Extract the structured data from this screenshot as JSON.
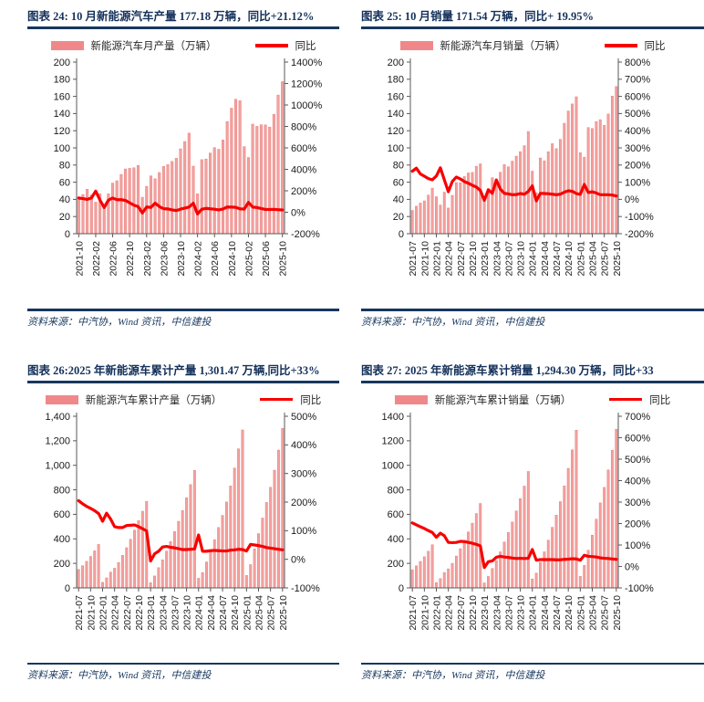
{
  "page": {
    "accent_rule_color": "#17375E",
    "title_color": "#15315B",
    "bar_color": "#F3A19F",
    "bar_edge_color": "#E9827F",
    "line_color": "#F80000"
  },
  "chart_data": [
    {
      "id": "figure-24",
      "type": "bar+line",
      "title": "图表 24: 10 月新能源汽车产量 177.18 万辆，同比+21.12%",
      "source": "资料来源：中汽协，Wind 资讯，中信建投",
      "legend": [
        {
          "name": "新能源汽车月产量（万辆）",
          "type": "bar"
        },
        {
          "name": "同比",
          "type": "line"
        }
      ],
      "left_axis": {
        "min": 0,
        "max": 200,
        "ticks": [
          "0",
          "20",
          "40",
          "60",
          "80",
          "100",
          "120",
          "140",
          "160",
          "180",
          "200"
        ]
      },
      "right_axis": {
        "min": -200,
        "max": 1400,
        "ticks": [
          "-200%",
          "0%",
          "200%",
          "400%",
          "600%",
          "800%",
          "1000%",
          "1200%",
          "1400%"
        ]
      },
      "x_tick_every": 4,
      "categories": [
        "2021-10",
        "2021-11",
        "2021-12",
        "2022-01",
        "2022-02",
        "2022-03",
        "2022-04",
        "2022-05",
        "2022-06",
        "2022-07",
        "2022-08",
        "2022-09",
        "2022-10",
        "2022-11",
        "2022-12",
        "2023-01",
        "2023-02",
        "2023-03",
        "2023-04",
        "2023-05",
        "2023-06",
        "2023-07",
        "2023-08",
        "2023-09",
        "2023-10",
        "2023-11",
        "2023-12",
        "2024-01",
        "2024-02",
        "2024-03",
        "2024-04",
        "2024-05",
        "2024-06",
        "2024-07",
        "2024-08",
        "2024-09",
        "2024-10",
        "2024-11",
        "2024-12",
        "2025-01",
        "2025-02",
        "2025-03",
        "2025-04",
        "2025-05",
        "2025-06",
        "2025-07",
        "2025-08",
        "2025-09",
        "2025-10"
      ],
      "series": [
        {
          "name": "新能源汽车月产量（万辆）",
          "axis": "left",
          "values": [
            39.7,
            45.7,
            51.8,
            45.2,
            36.8,
            46.5,
            31.2,
            46.6,
            59.0,
            61.7,
            69.1,
            75.5,
            76.2,
            76.8,
            79.5,
            42.5,
            55.2,
            67.4,
            64.0,
            71.3,
            78.4,
            80.5,
            84.3,
            87.9,
            98.9,
            107.4,
            117.2,
            78.7,
            46.4,
            86.3,
            87.0,
            94.0,
            100.3,
            98.4,
            109.2,
            130.7,
            146.3,
            156.6,
            154.9,
            101.5,
            88.8,
            127.7,
            125.1,
            127.0,
            126.8,
            124.3,
            139.1,
            161.6,
            177.18
          ]
        },
        {
          "name": "同比",
          "axis": "right",
          "values": [
            133,
            127,
            120,
            133,
            197,
            114,
            44,
            113,
            132,
            117,
            117,
            110,
            88,
            66,
            53,
            -7,
            49,
            45,
            85,
            53,
            33,
            31,
            22,
            16,
            29,
            39,
            48,
            85,
            -16,
            28,
            36,
            32,
            28,
            22,
            30,
            49,
            48,
            46,
            32,
            29,
            92,
            48,
            44,
            35,
            26,
            26,
            27,
            24,
            21.12
          ]
        }
      ]
    },
    {
      "id": "figure-25",
      "type": "bar+line",
      "title": "图表 25: 10 月销量 171.54 万辆，同比+ 19.95%",
      "source": "资料来源：中汽协，Wind 资讯，中信建投",
      "legend": [
        {
          "name": "新能源汽车月销量（万辆）",
          "type": "bar"
        },
        {
          "name": "同比",
          "type": "line"
        }
      ],
      "left_axis": {
        "min": 0,
        "max": 200,
        "ticks": [
          "0",
          "20",
          "40",
          "60",
          "80",
          "100",
          "120",
          "140",
          "160",
          "180",
          "200"
        ]
      },
      "right_axis": {
        "min": -200,
        "max": 800,
        "ticks": [
          "-200%",
          "-100%",
          "0%",
          "100%",
          "200%",
          "300%",
          "400%",
          "500%",
          "600%",
          "700%",
          "800%"
        ]
      },
      "x_tick_every": 3,
      "categories": [
        "2021-07",
        "2021-08",
        "2021-09",
        "2021-10",
        "2021-11",
        "2021-12",
        "2022-01",
        "2022-02",
        "2022-03",
        "2022-04",
        "2022-05",
        "2022-06",
        "2022-07",
        "2022-08",
        "2022-09",
        "2022-10",
        "2022-11",
        "2022-12",
        "2023-01",
        "2023-02",
        "2023-03",
        "2023-04",
        "2023-05",
        "2023-06",
        "2023-07",
        "2023-08",
        "2023-09",
        "2023-10",
        "2023-11",
        "2023-12",
        "2024-01",
        "2024-02",
        "2024-03",
        "2024-04",
        "2024-05",
        "2024-06",
        "2024-07",
        "2024-08",
        "2024-09",
        "2024-10",
        "2024-11",
        "2024-12",
        "2025-01",
        "2025-02",
        "2025-03",
        "2025-04",
        "2025-05",
        "2025-06",
        "2025-07",
        "2025-08",
        "2025-09",
        "2025-10"
      ],
      "series": [
        {
          "name": "新能源汽车月销量（万辆）",
          "axis": "left",
          "values": [
            27.1,
            32.1,
            35.7,
            38.3,
            45.0,
            53.1,
            43.1,
            33.4,
            48.4,
            29.9,
            44.7,
            59.6,
            59.3,
            66.6,
            70.8,
            71.4,
            78.6,
            81.4,
            40.8,
            52.5,
            65.3,
            63.6,
            71.7,
            80.6,
            78.0,
            84.6,
            90.4,
            95.6,
            102.6,
            119.1,
            72.9,
            47.7,
            88.3,
            85.0,
            95.5,
            104.9,
            99.1,
            110.0,
            128.7,
            143.0,
            151.2,
            159.6,
            94.4,
            89.2,
            123.7,
            122.6,
            130.7,
            132.9,
            126.2,
            139.5,
            160.4,
            171.54
          ]
        },
        {
          "name": "同比",
          "axis": "right",
          "values": [
            164,
            182,
            148,
            135,
            121,
            114,
            136,
            184,
            114,
            45,
            105,
            130,
            119,
            104,
            94,
            82,
            72,
            52,
            -6,
            56,
            35,
            113,
            60,
            35,
            32,
            27,
            28,
            34,
            30,
            46,
            79,
            -9,
            35,
            34,
            33,
            30,
            27,
            30,
            42,
            50,
            47,
            34,
            29,
            87,
            40,
            44,
            37,
            27,
            27,
            27,
            25,
            19.95
          ]
        }
      ]
    },
    {
      "id": "figure-26",
      "type": "bar+line",
      "title": "图表 26:2025 年新能源车累计产量 1,301.47 万辆,同比+33%",
      "source": "资料来源：中汽协，Wind 资讯，中信建投",
      "legend": [
        {
          "name": "新能源汽车累计产量（万辆）",
          "type": "bar"
        },
        {
          "name": "同比",
          "type": "line"
        }
      ],
      "left_axis": {
        "min": 0,
        "max": 1400,
        "ticks": [
          "0",
          "200",
          "400",
          "600",
          "800",
          "1,000",
          "1,200",
          "1,400"
        ]
      },
      "right_axis": {
        "min": -100,
        "max": 500,
        "ticks": [
          "-100%",
          "0%",
          "100%",
          "200%",
          "300%",
          "400%",
          "500%"
        ]
      },
      "x_tick_every": 3,
      "categories": [
        "2021-07",
        "2021-08",
        "2021-09",
        "2021-10",
        "2021-11",
        "2021-12",
        "2022-01",
        "2022-02",
        "2022-03",
        "2022-04",
        "2022-05",
        "2022-06",
        "2022-07",
        "2022-08",
        "2022-09",
        "2022-10",
        "2022-11",
        "2022-12",
        "2023-01",
        "2023-02",
        "2023-03",
        "2023-04",
        "2023-05",
        "2023-06",
        "2023-07",
        "2023-08",
        "2023-09",
        "2023-10",
        "2023-11",
        "2023-12",
        "2024-01",
        "2024-02",
        "2024-03",
        "2024-04",
        "2024-05",
        "2024-06",
        "2024-07",
        "2024-08",
        "2024-09",
        "2024-10",
        "2024-11",
        "2024-12",
        "2025-01",
        "2025-02",
        "2025-03",
        "2025-04",
        "2025-05",
        "2025-06",
        "2025-07",
        "2025-08",
        "2025-09",
        "2025-10"
      ],
      "series": [
        {
          "name": "新能源汽车累计产量（万辆）",
          "axis": "left",
          "values": [
            150.3,
            181.3,
            216.6,
            256.6,
            302.3,
            354.5,
            45.2,
            82.0,
            129.3,
            160.5,
            207.1,
            266.1,
            327.9,
            397.0,
            471.7,
            548.5,
            625.3,
            705.8,
            42.5,
            97.7,
            165.0,
            229.1,
            300.5,
            378.8,
            459.1,
            543.4,
            631.3,
            735.2,
            842.6,
            958.7,
            78.7,
            125.2,
            211.5,
            298.5,
            392.6,
            492.9,
            591.4,
            700.8,
            831.6,
            977.9,
            1134.5,
            1288.8,
            101.5,
            190.3,
            318.1,
            442.9,
            569.9,
            696.8,
            821.1,
            960.2,
            1124.3,
            1301.47
          ]
        },
        {
          "name": "同比",
          "axis": "right",
          "values": [
            205,
            194,
            185,
            178,
            170,
            160,
            133,
            161,
            141,
            114,
            111,
            111,
            118,
            119,
            120,
            114,
            107,
            99,
            -6,
            19,
            28,
            43,
            45,
            42,
            40,
            37,
            34,
            34,
            35,
            36,
            85,
            28,
            28,
            30,
            31,
            30,
            29,
            29,
            32,
            33,
            35,
            34,
            29,
            52,
            50,
            48,
            45,
            41,
            39,
            37,
            35,
            33
          ]
        }
      ]
    },
    {
      "id": "figure-27",
      "type": "bar+line",
      "title": "图表 27: 2025 年新能源车累计销量 1,294.30 万辆，同比+33",
      "source": "资料来源：中汽协，Wind 资讯，中信建投",
      "legend": [
        {
          "name": "新能源汽车累计销量（万辆）",
          "type": "bar"
        },
        {
          "name": "同比",
          "type": "line"
        }
      ],
      "left_axis": {
        "min": 0,
        "max": 1400,
        "ticks": [
          "0",
          "200",
          "400",
          "600",
          "800",
          "1000",
          "1200",
          "1400"
        ]
      },
      "right_axis": {
        "min": -100,
        "max": 700,
        "ticks": [
          "-100%",
          "0%",
          "100%",
          "200%",
          "300%",
          "400%",
          "500%",
          "600%",
          "700%"
        ]
      },
      "x_tick_every": 3,
      "categories": [
        "2021-07",
        "2021-08",
        "2021-09",
        "2021-10",
        "2021-11",
        "2021-12",
        "2022-01",
        "2022-02",
        "2022-03",
        "2022-04",
        "2022-05",
        "2022-06",
        "2022-07",
        "2022-08",
        "2022-09",
        "2022-10",
        "2022-11",
        "2022-12",
        "2023-01",
        "2023-02",
        "2023-03",
        "2023-04",
        "2023-05",
        "2023-06",
        "2023-07",
        "2023-08",
        "2023-09",
        "2023-10",
        "2023-11",
        "2023-12",
        "2024-01",
        "2024-02",
        "2024-03",
        "2024-04",
        "2024-05",
        "2024-06",
        "2024-07",
        "2024-08",
        "2024-09",
        "2024-10",
        "2024-11",
        "2024-12",
        "2025-01",
        "2025-02",
        "2025-03",
        "2025-04",
        "2025-05",
        "2025-06",
        "2025-07",
        "2025-08",
        "2025-09",
        "2025-10"
      ],
      "series": [
        {
          "name": "新能源汽车累计销量（万辆）",
          "axis": "left",
          "values": [
            147.8,
            179.9,
            215.7,
            254.2,
            299.0,
            352.1,
            43.1,
            76.5,
            125.7,
            155.6,
            200.3,
            260.0,
            319.4,
            386.0,
            456.7,
            528.0,
            606.7,
            688.7,
            40.8,
            93.3,
            158.6,
            222.2,
            294.0,
            374.7,
            452.6,
            537.4,
            627.8,
            728.0,
            830.4,
            949.5,
            72.9,
            120.7,
            209.0,
            294.0,
            389.5,
            494.4,
            593.4,
            703.7,
            832.0,
            975.0,
            1126.2,
            1286.6,
            94.4,
            183.6,
            307.5,
            430.1,
            560.8,
            693.7,
            820.0,
            962.5,
            1122.8,
            1294.3
          ]
        },
        {
          "name": "同比",
          "axis": "right",
          "values": [
            203,
            194,
            185,
            177,
            167,
            158,
            136,
            155,
            143,
            112,
            111,
            112,
            117,
            116,
            112,
            108,
            103,
            96,
            -5,
            22,
            26,
            43,
            47,
            44,
            42,
            39,
            37,
            38,
            37,
            38,
            79,
            29,
            32,
            32,
            32,
            32,
            31,
            31,
            33,
            34,
            36,
            35,
            29,
            52,
            47,
            46,
            44,
            40,
            38,
            37,
            35,
            33
          ]
        }
      ]
    }
  ]
}
